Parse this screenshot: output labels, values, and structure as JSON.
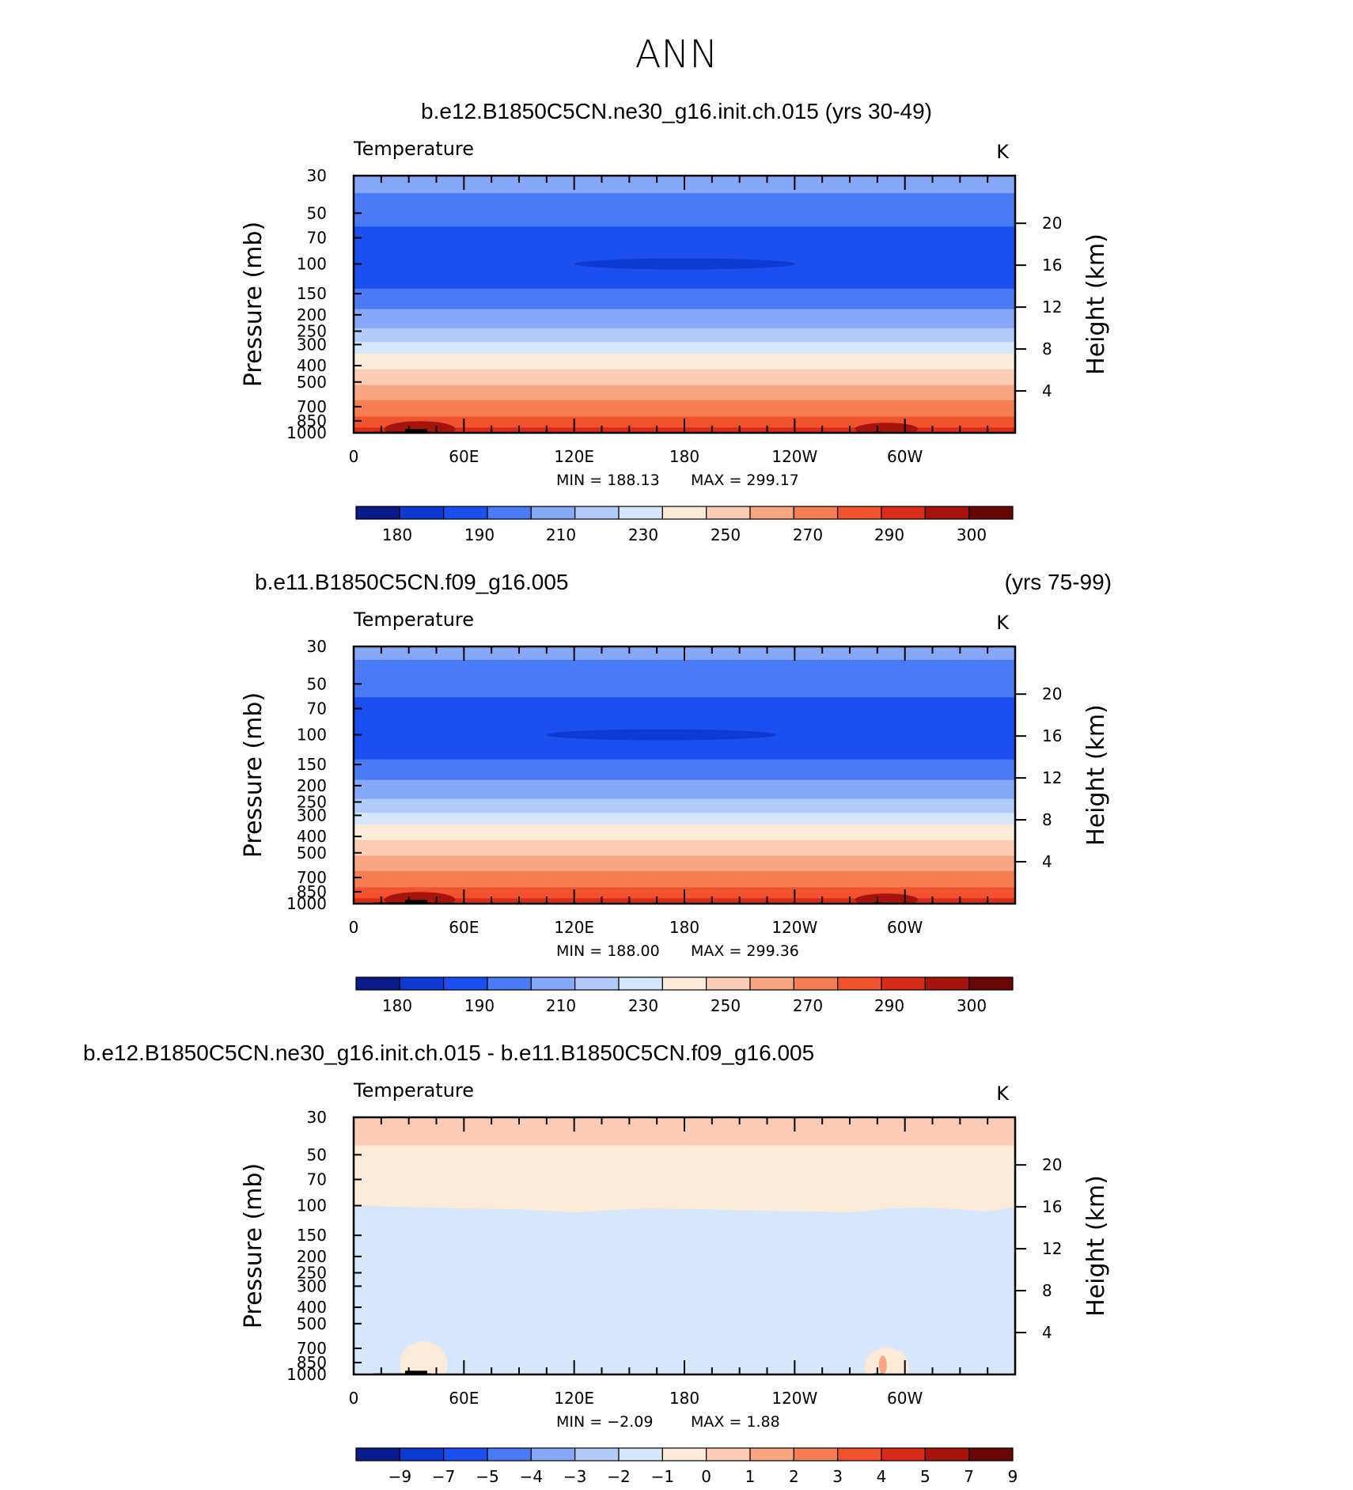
{
  "figure": {
    "title": "ANN"
  },
  "colors": {
    "temp_levels": [
      "#0a1a8a",
      "#0d3bd1",
      "#1c4ff0",
      "#4a7bf5",
      "#86a8f6",
      "#b3cbfa",
      "#d6e7fb",
      "#fdebd9",
      "#fcccb4",
      "#f9a783",
      "#f67e54",
      "#f2532f",
      "#d92b1a",
      "#a4140c",
      "#6a0606"
    ],
    "diff_levels": [
      "#0a1a8a",
      "#0d3bd1",
      "#1c4ff0",
      "#4a7bf5",
      "#86a8f6",
      "#b3cbfa",
      "#d6e7fb",
      "#fdebd9",
      "#fcccb4",
      "#f9a783",
      "#f67e54",
      "#f2532f",
      "#d92b1a",
      "#a4140c",
      "#6a0606"
    ]
  },
  "chart_data": [
    {
      "type": "heatmap",
      "title": "b.e12.B1850C5CN.ne30_g16.init.ch.015 (yrs 30-49)",
      "variable": "Temperature",
      "units": "K",
      "xlabel": "",
      "ylabel": "Pressure (mb)",
      "ylabel_right": "Height (km)",
      "x_ticks": [
        "0",
        "60E",
        "120E",
        "180",
        "120W",
        "60W"
      ],
      "x_range": [
        0,
        360
      ],
      "y_ticks": [
        "30",
        "50",
        "70",
        "100",
        "150",
        "200",
        "250",
        "300",
        "400",
        "500",
        "700",
        "850",
        "1000"
      ],
      "y_range": [
        30,
        1000
      ],
      "y_scale": "log",
      "y_right_ticks": [
        "4",
        "8",
        "12",
        "16",
        "20"
      ],
      "stats": {
        "min": "MIN = 188.13",
        "max": "MAX = 299.17"
      },
      "colorbar_labels": [
        "180",
        "190",
        "210",
        "230",
        "250",
        "270",
        "290",
        "300"
      ],
      "bands": [
        {
          "p": 30,
          "level": 4
        },
        {
          "p": 38,
          "level": 3
        },
        {
          "p": 60,
          "level": 2
        },
        {
          "p": 140,
          "level": 3
        },
        {
          "p": 185,
          "level": 4
        },
        {
          "p": 240,
          "level": 5
        },
        {
          "p": 290,
          "level": 6
        },
        {
          "p": 340,
          "level": 7
        },
        {
          "p": 420,
          "level": 8
        },
        {
          "p": 520,
          "level": 9
        },
        {
          "p": 640,
          "level": 10
        },
        {
          "p": 800,
          "level": 11
        },
        {
          "p": 930,
          "level": 12
        }
      ],
      "core": {
        "lon_range": [
          120,
          240
        ],
        "p": 100,
        "level": 1
      }
    },
    {
      "type": "heatmap",
      "title": "b.e11.B1850C5CN.f09_g16.005",
      "title_right": "(yrs 75-99)",
      "variable": "Temperature",
      "units": "K",
      "xlabel": "",
      "ylabel": "Pressure (mb)",
      "ylabel_right": "Height (km)",
      "x_ticks": [
        "0",
        "60E",
        "120E",
        "180",
        "120W",
        "60W"
      ],
      "x_range": [
        0,
        360
      ],
      "y_ticks": [
        "30",
        "50",
        "70",
        "100",
        "150",
        "200",
        "250",
        "300",
        "400",
        "500",
        "700",
        "850",
        "1000"
      ],
      "y_range": [
        30,
        1000
      ],
      "y_scale": "log",
      "y_right_ticks": [
        "4",
        "8",
        "12",
        "16",
        "20"
      ],
      "stats": {
        "min": "MIN = 188.00",
        "max": "MAX = 299.36"
      },
      "colorbar_labels": [
        "180",
        "190",
        "210",
        "230",
        "250",
        "270",
        "290",
        "300"
      ],
      "bands": [
        {
          "p": 30,
          "level": 4
        },
        {
          "p": 36,
          "level": 3
        },
        {
          "p": 60,
          "level": 2
        },
        {
          "p": 140,
          "level": 3
        },
        {
          "p": 185,
          "level": 4
        },
        {
          "p": 240,
          "level": 5
        },
        {
          "p": 290,
          "level": 6
        },
        {
          "p": 340,
          "level": 7
        },
        {
          "p": 420,
          "level": 8
        },
        {
          "p": 520,
          "level": 9
        },
        {
          "p": 640,
          "level": 10
        },
        {
          "p": 800,
          "level": 11
        },
        {
          "p": 930,
          "level": 12
        }
      ],
      "core": {
        "lon_range": [
          105,
          230
        ],
        "p": 100,
        "level": 1
      }
    },
    {
      "type": "heatmap",
      "title": "b.e12.B1850C5CN.ne30_g16.init.ch.015 - b.e11.B1850C5CN.f09_g16.005",
      "variable": "Temperature",
      "units": "K",
      "xlabel": "",
      "ylabel": "Pressure (mb)",
      "ylabel_right": "Height (km)",
      "x_ticks": [
        "0",
        "60E",
        "120E",
        "180",
        "120W",
        "60W"
      ],
      "x_range": [
        0,
        360
      ],
      "y_ticks": [
        "30",
        "50",
        "70",
        "100",
        "150",
        "200",
        "250",
        "300",
        "400",
        "500",
        "700",
        "850",
        "1000"
      ],
      "y_range": [
        30,
        1000
      ],
      "y_scale": "log",
      "y_right_ticks": [
        "4",
        "8",
        "12",
        "16",
        "20"
      ],
      "stats": {
        "min": "MIN =    −2.09",
        "max": "MAX =     1.88"
      },
      "colorbar_labels": [
        "−9",
        "−7",
        "−5",
        "−4",
        "−3",
        "−2",
        "−1",
        "0",
        "1",
        "2",
        "3",
        "4",
        "5",
        "7",
        "9"
      ],
      "bands": [
        {
          "p": 30,
          "level": 8
        },
        {
          "p": 44,
          "level": 7
        },
        {
          "p": 100,
          "level": 6
        }
      ]
    }
  ]
}
